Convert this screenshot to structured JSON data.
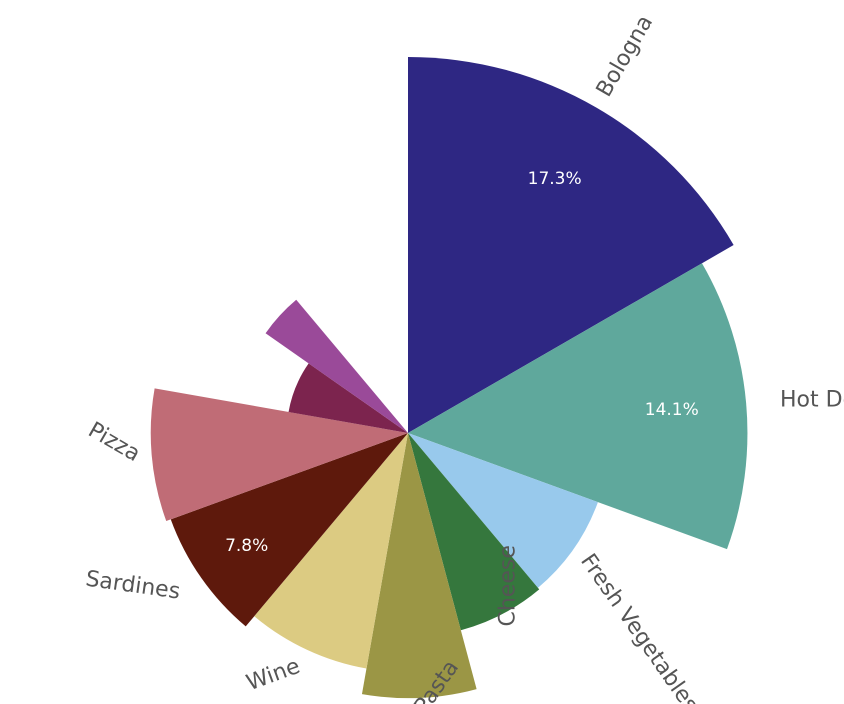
{
  "chart_data": {
    "type": "polar-area",
    "categories": [
      "Bologna",
      "Hot Dogs",
      "Fresh Vegetables",
      "Cheese",
      "Pasta",
      "Wine",
      "Sardines",
      "Pizza",
      "",
      ""
    ],
    "values": [
      17.3,
      14.1,
      5.0,
      5.1,
      8.6,
      7.0,
      7.8,
      8.1,
      1.8,
      3.7
    ],
    "data_labels": [
      "17.3%",
      "14.1%",
      "",
      "",
      "",
      "",
      "7.8%",
      "",
      "",
      ""
    ],
    "colors": [
      "#2e2783",
      "#5fa89c",
      "#98c9ec",
      "#35773d",
      "#9b9645",
      "#dccb82",
      "#5e190c",
      "#c06c76",
      "#7c244e",
      "#9a4a99"
    ],
    "sweeps_deg": [
      60,
      50,
      30,
      25,
      25,
      30,
      30,
      30,
      25,
      15
    ]
  }
}
